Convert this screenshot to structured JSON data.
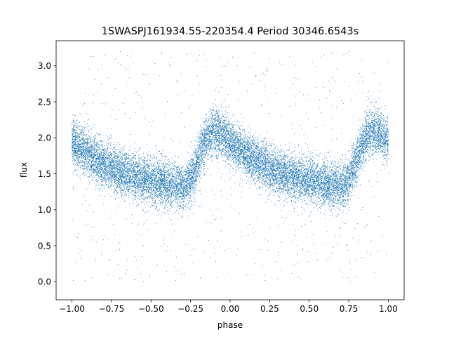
{
  "chart_data": {
    "type": "scatter",
    "title": "1SWASPJ161934.55-220354.4 Period 30346.6543s",
    "xlabel": "phase",
    "ylabel": "flux",
    "xlim": [
      -1.1,
      1.1
    ],
    "ylim": [
      -0.25,
      3.35
    ],
    "x_ticks": [
      -1.0,
      -0.75,
      -0.5,
      -0.25,
      0.0,
      0.25,
      0.5,
      0.75,
      1.0
    ],
    "x_tick_labels": [
      "−1.00",
      "−0.75",
      "−0.50",
      "−0.25",
      "0.00",
      "0.25",
      "0.50",
      "0.75",
      "1.00"
    ],
    "y_ticks": [
      0.0,
      0.5,
      1.0,
      1.5,
      2.0,
      2.5,
      3.0
    ],
    "y_tick_labels": [
      "0.0",
      "0.5",
      "1.0",
      "1.5",
      "2.0",
      "2.5",
      "3.0"
    ],
    "grid": false,
    "legend": "none",
    "marker_color": "#1f77b4",
    "curve_nodes": {
      "phase": [
        0.0,
        0.1,
        0.2,
        0.3,
        0.4,
        0.5,
        0.6,
        0.7,
        0.75,
        0.8,
        0.85,
        0.9,
        0.95,
        1.0
      ],
      "flux": [
        1.95,
        1.78,
        1.64,
        1.52,
        1.45,
        1.41,
        1.36,
        1.32,
        1.4,
        1.7,
        2.0,
        2.1,
        2.05,
        1.95
      ]
    },
    "phase_range": [
      -1.0,
      1.0
    ],
    "scatter_width": 0.16,
    "outlier_fraction": 0.04,
    "outlier_range": [
      0.0,
      3.2
    ],
    "n_points": 16000
  }
}
